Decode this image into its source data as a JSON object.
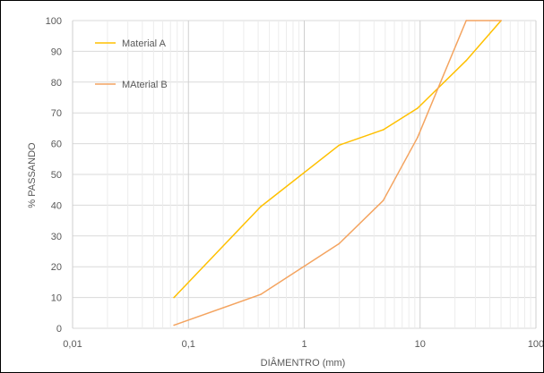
{
  "chart_data": {
    "type": "line",
    "title": "",
    "xlabel": "DIÂMENTRO (mm)",
    "ylabel": "% PASSANDO",
    "x_scale": "log",
    "xlim": [
      0.01,
      100
    ],
    "ylim": [
      0,
      100
    ],
    "x_ticks": [
      0.01,
      0.1,
      1,
      10,
      100
    ],
    "x_tick_labels": [
      "0,01",
      "0,1",
      "1",
      "10",
      "100"
    ],
    "y_ticks": [
      0,
      10,
      20,
      30,
      40,
      50,
      60,
      70,
      80,
      90,
      100
    ],
    "y_tick_labels": [
      "0",
      "10",
      "20",
      "30",
      "40",
      "50",
      "60",
      "70",
      "80",
      "90",
      "100"
    ],
    "grid": true,
    "legend": "top-left",
    "series": [
      {
        "name": "Material A",
        "color": "#FFC000",
        "x": [
          0.075,
          0.42,
          2.0,
          4.8,
          9.5,
          25.0,
          50.0
        ],
        "y": [
          10,
          39.5,
          59.5,
          64.5,
          71.5,
          87,
          100
        ]
      },
      {
        "name": "MAterial B",
        "color": "#F4A460",
        "x": [
          0.075,
          0.42,
          2.0,
          4.8,
          9.5,
          25.0,
          50.0
        ],
        "y": [
          1,
          11,
          27.5,
          41.5,
          62,
          100,
          100
        ]
      }
    ]
  }
}
